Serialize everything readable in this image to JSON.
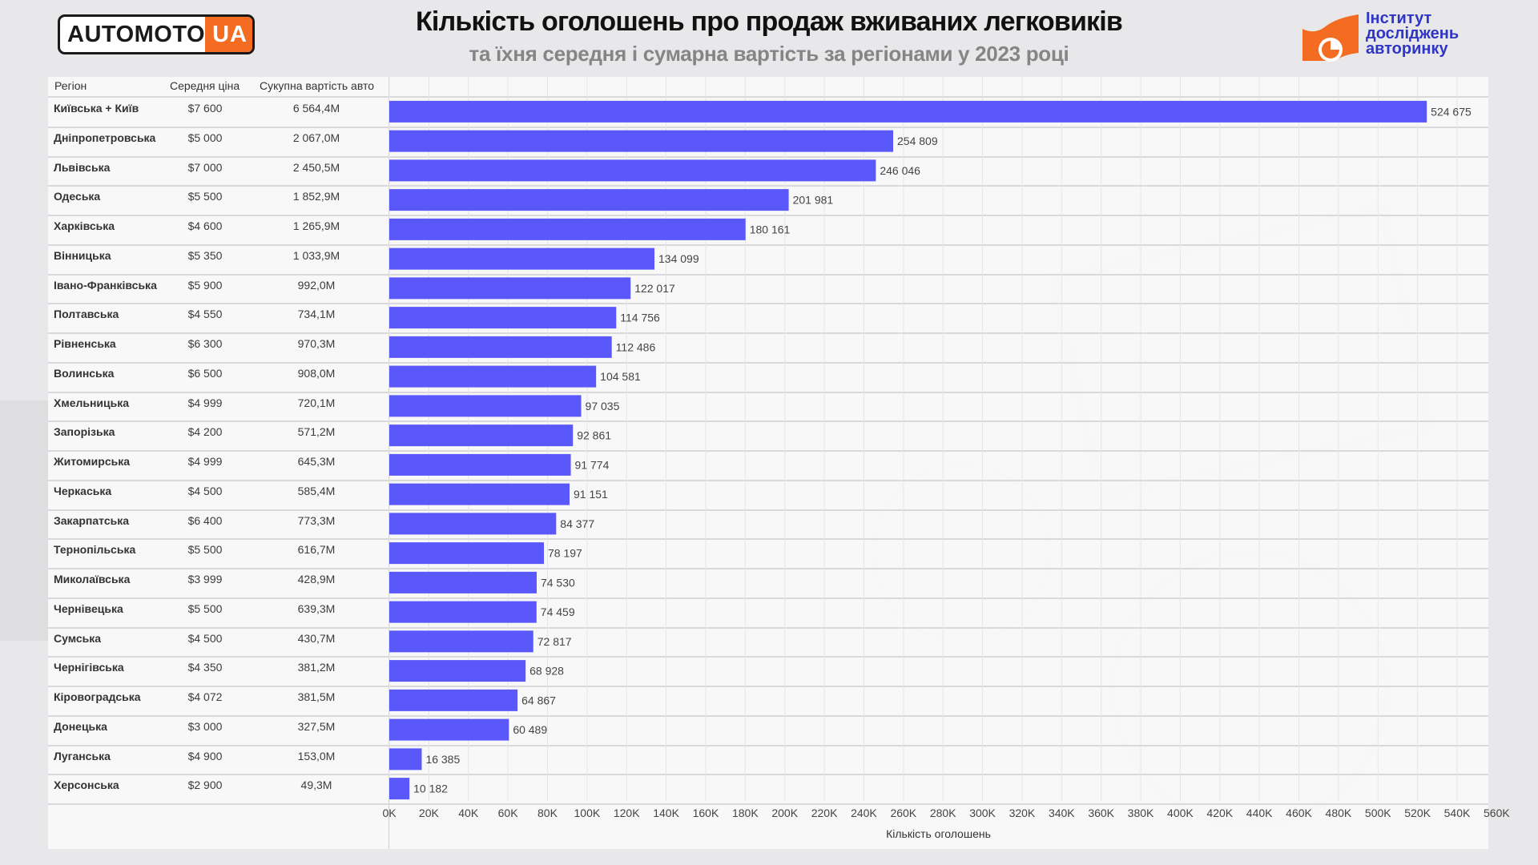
{
  "header": {
    "logo_main": "AUTOMOTO",
    "logo_ua": "UA",
    "title": "Кількість оголошень про продаж вживаних легковиків",
    "subtitle": "та їхня середня і сумарна вартість за регіонами у 2023 році",
    "institute_lines": [
      "Інститут",
      "досліджень",
      "авторинку"
    ]
  },
  "colors": {
    "bar": "#5a57fb",
    "accent_orange": "#f36c21",
    "institute_blue": "#2f35c4"
  },
  "table": {
    "headers": [
      "Регіон",
      "Середня ціна",
      "Сукупна вартість авто"
    ],
    "rows": [
      {
        "region": "Київська + Київ",
        "price": "$7 600",
        "total": "6 564,4M"
      },
      {
        "region": "Дніпропетровська",
        "price": "$5 000",
        "total": "2 067,0M"
      },
      {
        "region": "Львівська",
        "price": "$7 000",
        "total": "2 450,5M"
      },
      {
        "region": "Одеська",
        "price": "$5 500",
        "total": "1 852,9M"
      },
      {
        "region": "Харківська",
        "price": "$4 600",
        "total": "1 265,9M"
      },
      {
        "region": "Вінницька",
        "price": "$5 350",
        "total": "1 033,9M"
      },
      {
        "region": "Івано-Франківська",
        "price": "$5 900",
        "total": "992,0M"
      },
      {
        "region": "Полтавська",
        "price": "$4 550",
        "total": "734,1M"
      },
      {
        "region": "Рівненська",
        "price": "$6 300",
        "total": "970,3M"
      },
      {
        "region": "Волинська",
        "price": "$6 500",
        "total": "908,0M"
      },
      {
        "region": "Хмельницька",
        "price": "$4 999",
        "total": "720,1M"
      },
      {
        "region": "Запорізька",
        "price": "$4 200",
        "total": "571,2M"
      },
      {
        "region": "Житомирська",
        "price": "$4 999",
        "total": "645,3M"
      },
      {
        "region": "Черкаська",
        "price": "$4 500",
        "total": "585,4M"
      },
      {
        "region": "Закарпатська",
        "price": "$6 400",
        "total": "773,3M"
      },
      {
        "region": "Тернопільська",
        "price": "$5 500",
        "total": "616,7M"
      },
      {
        "region": "Миколаївська",
        "price": "$3 999",
        "total": "428,9M"
      },
      {
        "region": "Чернівецька",
        "price": "$5 500",
        "total": "639,3M"
      },
      {
        "region": "Сумська",
        "price": "$4 500",
        "total": "430,7M"
      },
      {
        "region": "Чернігівська",
        "price": "$4 350",
        "total": "381,2M"
      },
      {
        "region": "Кіровоградська",
        "price": "$4 072",
        "total": "381,5M"
      },
      {
        "region": "Донецька",
        "price": "$3 000",
        "total": "327,5M"
      },
      {
        "region": "Луганська",
        "price": "$4 900",
        "total": "153,0M"
      },
      {
        "region": "Херсонська",
        "price": "$2 900",
        "total": "49,3M"
      }
    ]
  },
  "chart_data": {
    "type": "bar",
    "orientation": "horizontal",
    "title": "Кількість оголошень про продаж вживаних легковиків",
    "subtitle": "та їхня середня і сумарна вартість за регіонами у 2023 році",
    "xlabel": "Кількість оголошень",
    "ylabel": "",
    "categories": [
      "Київська + Київ",
      "Дніпропетровська",
      "Львівська",
      "Одеська",
      "Харківська",
      "Вінницька",
      "Івано-Франківська",
      "Полтавська",
      "Рівненська",
      "Волинська",
      "Хмельницька",
      "Запорізька",
      "Житомирська",
      "Черкаська",
      "Закарпатська",
      "Тернопільська",
      "Миколаївська",
      "Чернівецька",
      "Сумська",
      "Чернігівська",
      "Кіровоградська",
      "Донецька",
      "Луганська",
      "Херсонська"
    ],
    "values": [
      524675,
      254809,
      246046,
      201981,
      180161,
      134099,
      122017,
      114756,
      112486,
      104581,
      97035,
      92861,
      91774,
      91151,
      84377,
      78197,
      74530,
      74459,
      72817,
      68928,
      64867,
      60489,
      16385,
      10182
    ],
    "value_labels": [
      "524 675",
      "254 809",
      "246 046",
      "201 981",
      "180 161",
      "134 099",
      "122 017",
      "114 756",
      "112 486",
      "104 581",
      "97 035",
      "92 861",
      "91 774",
      "91 151",
      "84 377",
      "78 197",
      "74 530",
      "74 459",
      "72 817",
      "68 928",
      "64 867",
      "60 489",
      "16 385",
      "10 182"
    ],
    "xlim": [
      0,
      575000
    ],
    "x_ticks": [
      0,
      20000,
      40000,
      60000,
      80000,
      100000,
      120000,
      140000,
      160000,
      180000,
      200000,
      220000,
      240000,
      260000,
      280000,
      300000,
      320000,
      340000,
      360000,
      380000,
      400000,
      420000,
      440000,
      460000,
      480000,
      500000,
      520000,
      540000,
      560000
    ],
    "x_tick_labels": [
      "0K",
      "20K",
      "40K",
      "60K",
      "80K",
      "100K",
      "120K",
      "140K",
      "160K",
      "180K",
      "200K",
      "220K",
      "240K",
      "260K",
      "280K",
      "300K",
      "320K",
      "340K",
      "360K",
      "380K",
      "400K",
      "420K",
      "440K",
      "460K",
      "480K",
      "500K",
      "520K",
      "540K",
      "560K"
    ],
    "grid": true
  }
}
